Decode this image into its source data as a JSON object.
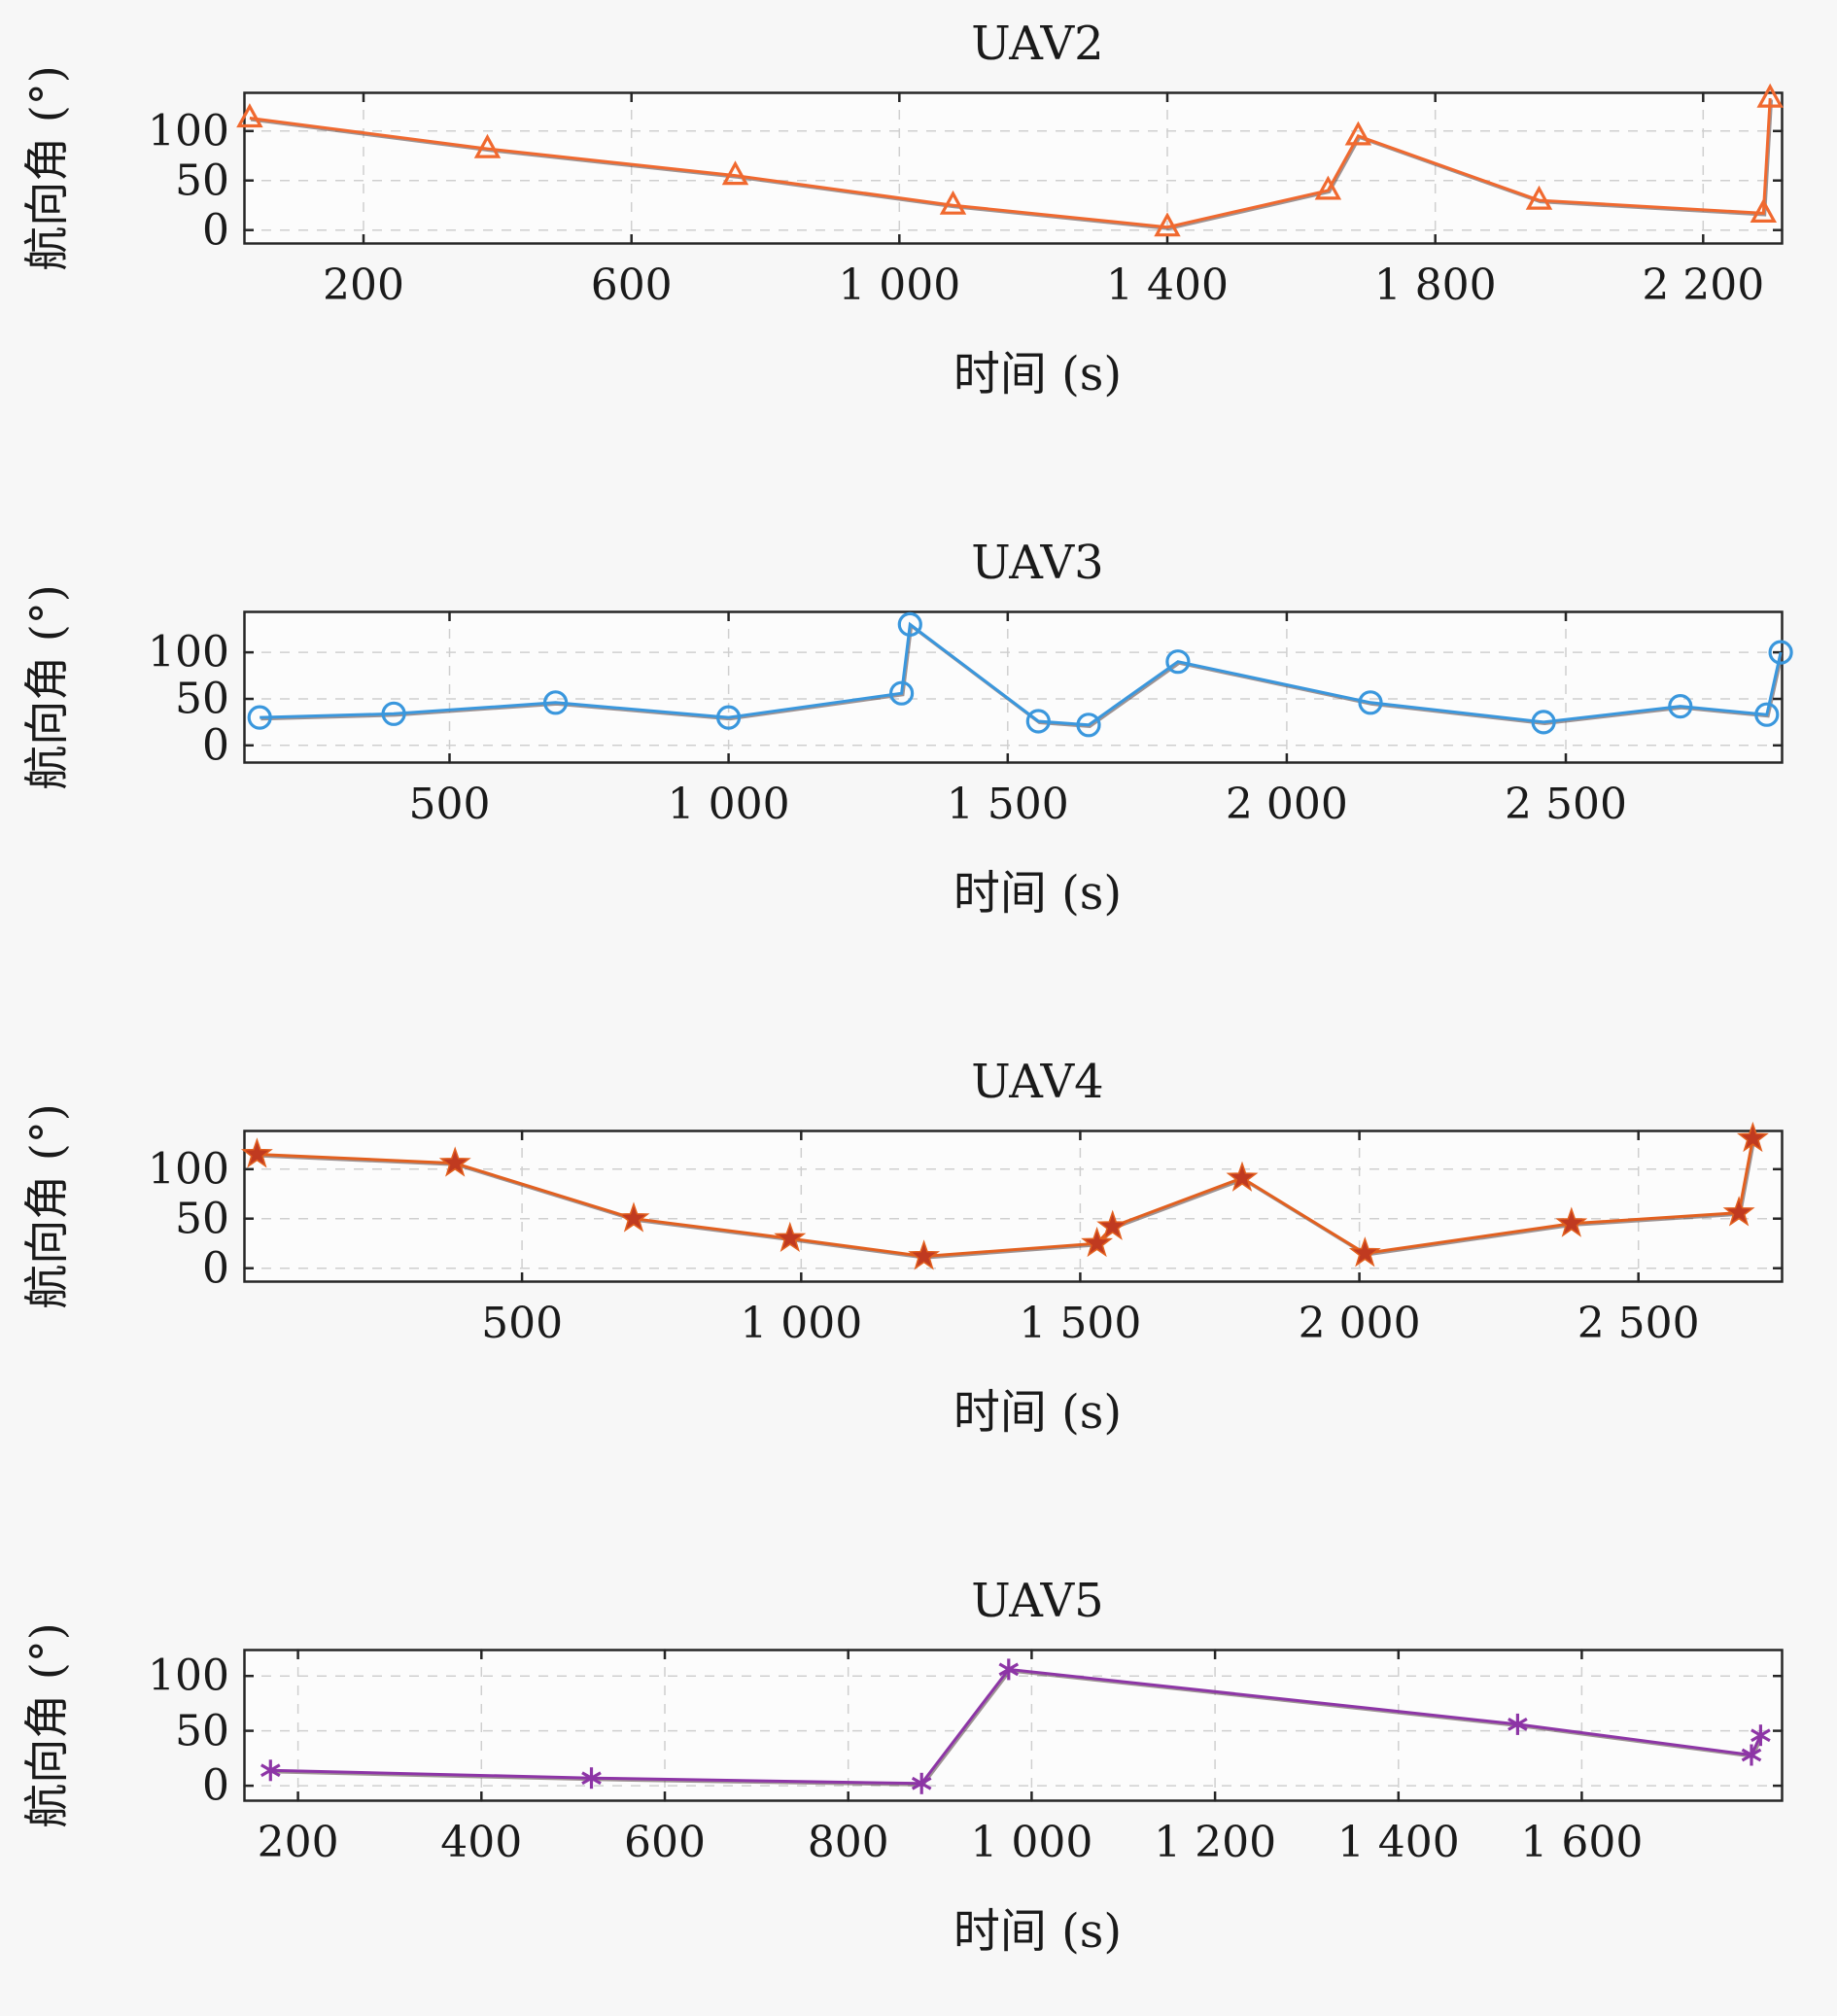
{
  "theme": {
    "background": "#f7f7f7",
    "plot_bg": "#fcfcfc",
    "grid_color": "#cfcfcf",
    "frame_color": "#262626",
    "text_color": "#1a1a1a",
    "underlay_line_color": "rgba(80,60,60,0.55)"
  },
  "chart_data": [
    {
      "type": "line",
      "title": "UAV2",
      "xlabel": "时间 (s)",
      "ylabel": "航向角 (°)",
      "color": "#f0692f",
      "marker": "triangle",
      "marker_fill": "none",
      "grid": true,
      "xlim": [
        20,
        2320
      ],
      "ylim": [
        -15,
        140
      ],
      "xticks": [
        {
          "v": 200,
          "label": "200"
        },
        {
          "v": 600,
          "label": "600"
        },
        {
          "v": 1000,
          "label": "1 000"
        },
        {
          "v": 1400,
          "label": "1 400"
        },
        {
          "v": 1800,
          "label": "1 800"
        },
        {
          "v": 2200,
          "label": "2 200"
        }
      ],
      "yticks": [
        {
          "v": 0,
          "label": "0"
        },
        {
          "v": 50,
          "label": "50"
        },
        {
          "v": 100,
          "label": "100"
        }
      ],
      "points": [
        [
          30,
          113
        ],
        [
          385,
          82
        ],
        [
          755,
          55
        ],
        [
          1080,
          25
        ],
        [
          1400,
          3
        ],
        [
          1640,
          40
        ],
        [
          1685,
          95
        ],
        [
          1955,
          30
        ],
        [
          2290,
          17
        ],
        [
          2300,
          133
        ]
      ]
    },
    {
      "type": "line",
      "title": "UAV3",
      "xlabel": "时间 (s)",
      "ylabel": "航向角 (°)",
      "color": "#3a97dd",
      "marker": "circle",
      "marker_fill": "none",
      "grid": true,
      "xlim": [
        130,
        2890
      ],
      "ylim": [
        -20,
        145
      ],
      "xticks": [
        {
          "v": 500,
          "label": "500"
        },
        {
          "v": 1000,
          "label": "1 000"
        },
        {
          "v": 1500,
          "label": "1 500"
        },
        {
          "v": 2000,
          "label": "2 000"
        },
        {
          "v": 2500,
          "label": "2 500"
        }
      ],
      "yticks": [
        {
          "v": 0,
          "label": "0"
        },
        {
          "v": 50,
          "label": "50"
        },
        {
          "v": 100,
          "label": "100"
        }
      ],
      "points": [
        [
          160,
          30
        ],
        [
          400,
          34
        ],
        [
          690,
          46
        ],
        [
          1000,
          30
        ],
        [
          1310,
          56
        ],
        [
          1325,
          130
        ],
        [
          1555,
          26
        ],
        [
          1645,
          22
        ],
        [
          1805,
          90
        ],
        [
          2150,
          46
        ],
        [
          2460,
          25
        ],
        [
          2705,
          42
        ],
        [
          2860,
          33
        ],
        [
          2885,
          100
        ]
      ]
    },
    {
      "type": "line",
      "title": "UAV4",
      "xlabel": "时间 (s)",
      "ylabel": "航向角 (°)",
      "color": "#e2601f",
      "marker": "star",
      "marker_fill": "#c03a20",
      "grid": true,
      "xlim": [
        0,
        2760
      ],
      "ylim": [
        -15,
        140
      ],
      "xticks": [
        {
          "v": 500,
          "label": "500"
        },
        {
          "v": 1000,
          "label": "1 000"
        },
        {
          "v": 1500,
          "label": "1 500"
        },
        {
          "v": 2000,
          "label": "2 000"
        },
        {
          "v": 2500,
          "label": "2 500"
        }
      ],
      "yticks": [
        {
          "v": 0,
          "label": "0"
        },
        {
          "v": 50,
          "label": "50"
        },
        {
          "v": 100,
          "label": "100"
        }
      ],
      "points": [
        [
          25,
          115
        ],
        [
          380,
          106
        ],
        [
          700,
          50
        ],
        [
          980,
          30
        ],
        [
          1220,
          12
        ],
        [
          1530,
          25
        ],
        [
          1558,
          42
        ],
        [
          1790,
          91
        ],
        [
          2010,
          15
        ],
        [
          2380,
          45
        ],
        [
          2680,
          56
        ],
        [
          2705,
          131
        ]
      ]
    },
    {
      "type": "line",
      "title": "UAV5",
      "xlabel": "时间 (s)",
      "ylabel": "航向角 (°)",
      "color": "#8d35a6",
      "marker": "asterisk",
      "marker_fill": "none",
      "grid": true,
      "xlim": [
        140,
        1820
      ],
      "ylim": [
        -15,
        125
      ],
      "xticks": [
        {
          "v": 200,
          "label": "200"
        },
        {
          "v": 400,
          "label": "400"
        },
        {
          "v": 600,
          "label": "600"
        },
        {
          "v": 800,
          "label": "800"
        },
        {
          "v": 1000,
          "label": "1 000"
        },
        {
          "v": 1200,
          "label": "1 200"
        },
        {
          "v": 1400,
          "label": "1 400"
        },
        {
          "v": 1600,
          "label": "1 600"
        }
      ],
      "yticks": [
        {
          "v": 0,
          "label": "0"
        },
        {
          "v": 50,
          "label": "50"
        },
        {
          "v": 100,
          "label": "100"
        }
      ],
      "points": [
        [
          170,
          14
        ],
        [
          520,
          7
        ],
        [
          880,
          2
        ],
        [
          975,
          106
        ],
        [
          1530,
          56
        ],
        [
          1785,
          28
        ],
        [
          1795,
          46
        ]
      ]
    }
  ]
}
